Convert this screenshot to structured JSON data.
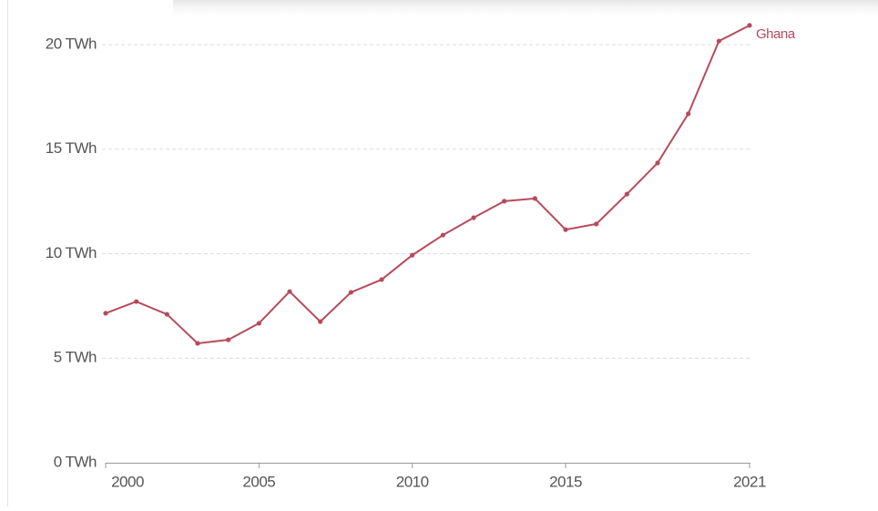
{
  "chart_data": {
    "type": "line",
    "x": [
      2000,
      2001,
      2002,
      2003,
      2004,
      2005,
      2006,
      2007,
      2008,
      2009,
      2010,
      2011,
      2012,
      2013,
      2014,
      2015,
      2016,
      2017,
      2018,
      2019,
      2020,
      2021
    ],
    "series": [
      {
        "name": "Ghana",
        "color": "#b74a5c",
        "values": [
          7.15,
          7.71,
          7.1,
          5.71,
          5.88,
          6.67,
          8.19,
          6.75,
          8.15,
          8.76,
          9.93,
          10.89,
          11.72,
          12.51,
          12.64,
          11.15,
          11.42,
          12.85,
          14.34,
          16.69,
          20.17,
          20.92
        ]
      }
    ],
    "xlim": [
      2000,
      2021
    ],
    "xticks": [
      2000,
      2005,
      2010,
      2015,
      2021
    ],
    "ylim": [
      0,
      20
    ],
    "yticks": [
      {
        "value": 0,
        "label": "0 TWh"
      },
      {
        "value": 5,
        "label": "5 TWh"
      },
      {
        "value": 10,
        "label": "10 TWh"
      },
      {
        "value": 15,
        "label": "15 TWh"
      },
      {
        "value": 20,
        "label": "20 TWh"
      }
    ],
    "grid": true
  }
}
